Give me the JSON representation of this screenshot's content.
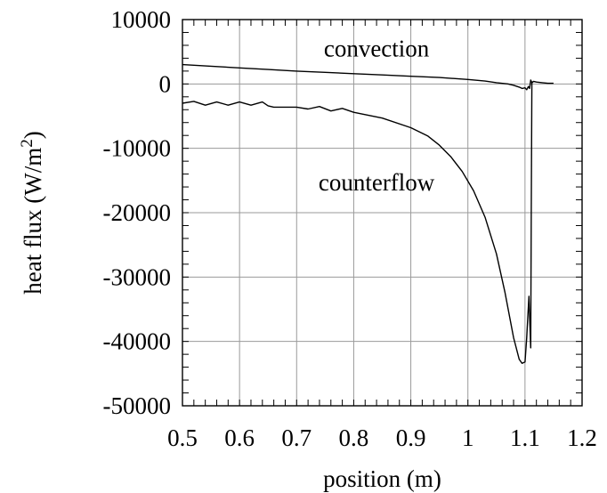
{
  "chart_data": {
    "type": "line",
    "title": "",
    "xlabel": "position (m)",
    "ylabel": {
      "prefix": "heat flux (W/m",
      "sup": "2",
      "suffix": ")"
    },
    "xlim": [
      0.5,
      1.2
    ],
    "ylim": [
      -50000,
      10000
    ],
    "x_ticks": [
      0.5,
      0.6,
      0.7,
      0.8,
      0.9,
      1.0,
      1.1,
      1.2
    ],
    "x_tick_labels": [
      "0.5",
      "0.6",
      "0.7",
      "0.8",
      "0.9",
      "1",
      "1.1",
      "1.2"
    ],
    "y_ticks": [
      10000,
      0,
      -10000,
      -20000,
      -30000,
      -40000,
      -50000
    ],
    "y_tick_labels": [
      "10000",
      "0",
      "-10000",
      "-20000",
      "-30000",
      "-40000",
      "-50000"
    ],
    "x_minor_step": 0.02,
    "y_minor_step": 2000,
    "grid": true,
    "line_color": "#000000",
    "annotations": [
      {
        "text": "convection",
        "x": 0.84,
        "y": 5500
      },
      {
        "text": "counterflow",
        "x": 0.84,
        "y": -15300
      }
    ],
    "series": [
      {
        "x": [
          0.5,
          0.55,
          0.6,
          0.65,
          0.7,
          0.75,
          0.8,
          0.85,
          0.9,
          0.95,
          1.0,
          1.03,
          1.05,
          1.07,
          1.08,
          1.09,
          1.095,
          1.1,
          1.103,
          1.106,
          1.108,
          1.11,
          1.112,
          1.115,
          1.12,
          1.13,
          1.14,
          1.15
        ],
        "y": [
          3000,
          2750,
          2500,
          2250,
          2000,
          1800,
          1600,
          1400,
          1200,
          1000,
          700,
          450,
          200,
          0,
          -200,
          -500,
          -700,
          -600,
          -900,
          -400,
          -700,
          600,
          200,
          400,
          300,
          200,
          100,
          100
        ]
      },
      {
        "x": [
          0.5,
          0.52,
          0.54,
          0.56,
          0.58,
          0.6,
          0.62,
          0.64,
          0.65,
          0.66,
          0.7,
          0.72,
          0.74,
          0.76,
          0.78,
          0.8,
          0.85,
          0.9,
          0.93,
          0.95,
          0.97,
          0.99,
          1.01,
          1.03,
          1.05,
          1.065,
          1.08,
          1.09,
          1.095,
          1.1,
          1.103,
          1.105,
          1.107,
          1.108,
          1.11,
          1.111,
          1.112,
          1.113,
          1.114
        ],
        "y": [
          -3000,
          -2700,
          -3300,
          -2800,
          -3300,
          -2800,
          -3300,
          -2800,
          -3400,
          -3600,
          -3600,
          -3900,
          -3500,
          -4200,
          -3800,
          -4400,
          -5300,
          -6800,
          -8100,
          -9500,
          -11300,
          -13600,
          -16600,
          -20700,
          -26400,
          -32400,
          -39400,
          -42800,
          -43400,
          -43200,
          -39400,
          -36000,
          -33000,
          -36000,
          -41000,
          -20000,
          200,
          300,
          200
        ]
      }
    ]
  }
}
